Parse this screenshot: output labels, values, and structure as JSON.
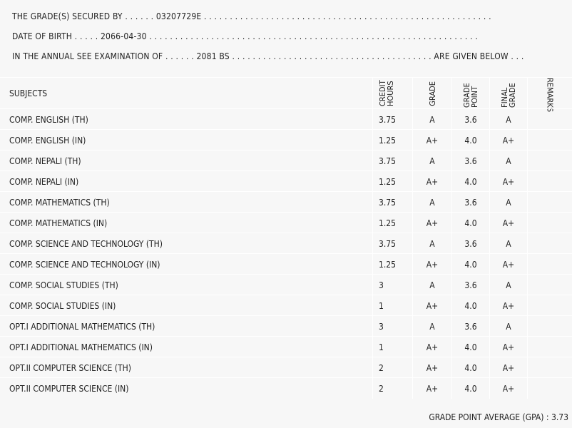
{
  "header": {
    "lines": [
      "THE GRADE(S) SECURED BY . . . . . . 03207729E . . . . . . . . . . . . . . . . . . . . . . . . . . . . . . . . . . . . . . . . . . . . . . . . . . . . . . . .",
      "DATE OF BIRTH . . . . . 2066-04-30 . . . . . . . . . . . . . . . . . . . . . . . . . . . . . . . . . . . . . . . . . . . . . . . . . . . . . . . . . . . . . . . .",
      "IN THE ANNUAL SEE EXAMINATION OF . . . . . . 2081 BS . . . . . . . . . . . . . . . . . . . . . . . . . . . . . . . . . . . . . . . ARE GIVEN BELOW . . ."
    ]
  },
  "table": {
    "columns": [
      "SUBJECTS",
      "CREDIT HOURS",
      "GRADE",
      "GRADE POINT",
      "FINAL GRADE",
      "REMARKS"
    ],
    "rows": [
      [
        "COMP. ENGLISH (TH)",
        "3.75",
        "A",
        "3.6",
        "A"
      ],
      [
        "COMP. ENGLISH (IN)",
        "1.25",
        "A+",
        "4.0",
        "A+"
      ],
      [
        "COMP. NEPALI (TH)",
        "3.75",
        "A",
        "3.6",
        "A"
      ],
      [
        "COMP. NEPALI (IN)",
        "1.25",
        "A+",
        "4.0",
        "A+"
      ],
      [
        "COMP. MATHEMATICS (TH)",
        "3.75",
        "A",
        "3.6",
        "A"
      ],
      [
        "COMP. MATHEMATICS (IN)",
        "1.25",
        "A+",
        "4.0",
        "A+"
      ],
      [
        "COMP. SCIENCE AND TECHNOLOGY (TH)",
        "3.75",
        "A",
        "3.6",
        "A"
      ],
      [
        "COMP. SCIENCE AND TECHNOLOGY (IN)",
        "1.25",
        "A+",
        "4.0",
        "A+"
      ],
      [
        "COMP. SOCIAL STUDIES (TH)",
        "3",
        "A",
        "3.6",
        "A"
      ],
      [
        "COMP. SOCIAL STUDIES (IN)",
        "1",
        "A+",
        "4.0",
        "A+"
      ],
      [
        "OPT.I ADDITIONAL MATHEMATICS (TH)",
        "3",
        "A",
        "3.6",
        "A"
      ],
      [
        "OPT.I ADDITIONAL MATHEMATICS (IN)",
        "1",
        "A+",
        "4.0",
        "A+"
      ],
      [
        "OPT.II COMPUTER SCIENCE (TH)",
        "2",
        "A+",
        "4.0",
        "A+"
      ],
      [
        "OPT.II COMPUTER SCIENCE (IN)",
        "2",
        "A+",
        "4.0",
        "A+"
      ]
    ]
  },
  "footer": {
    "gpa": "GRADE POINT AVERAGE (GPA) : 3.73"
  }
}
